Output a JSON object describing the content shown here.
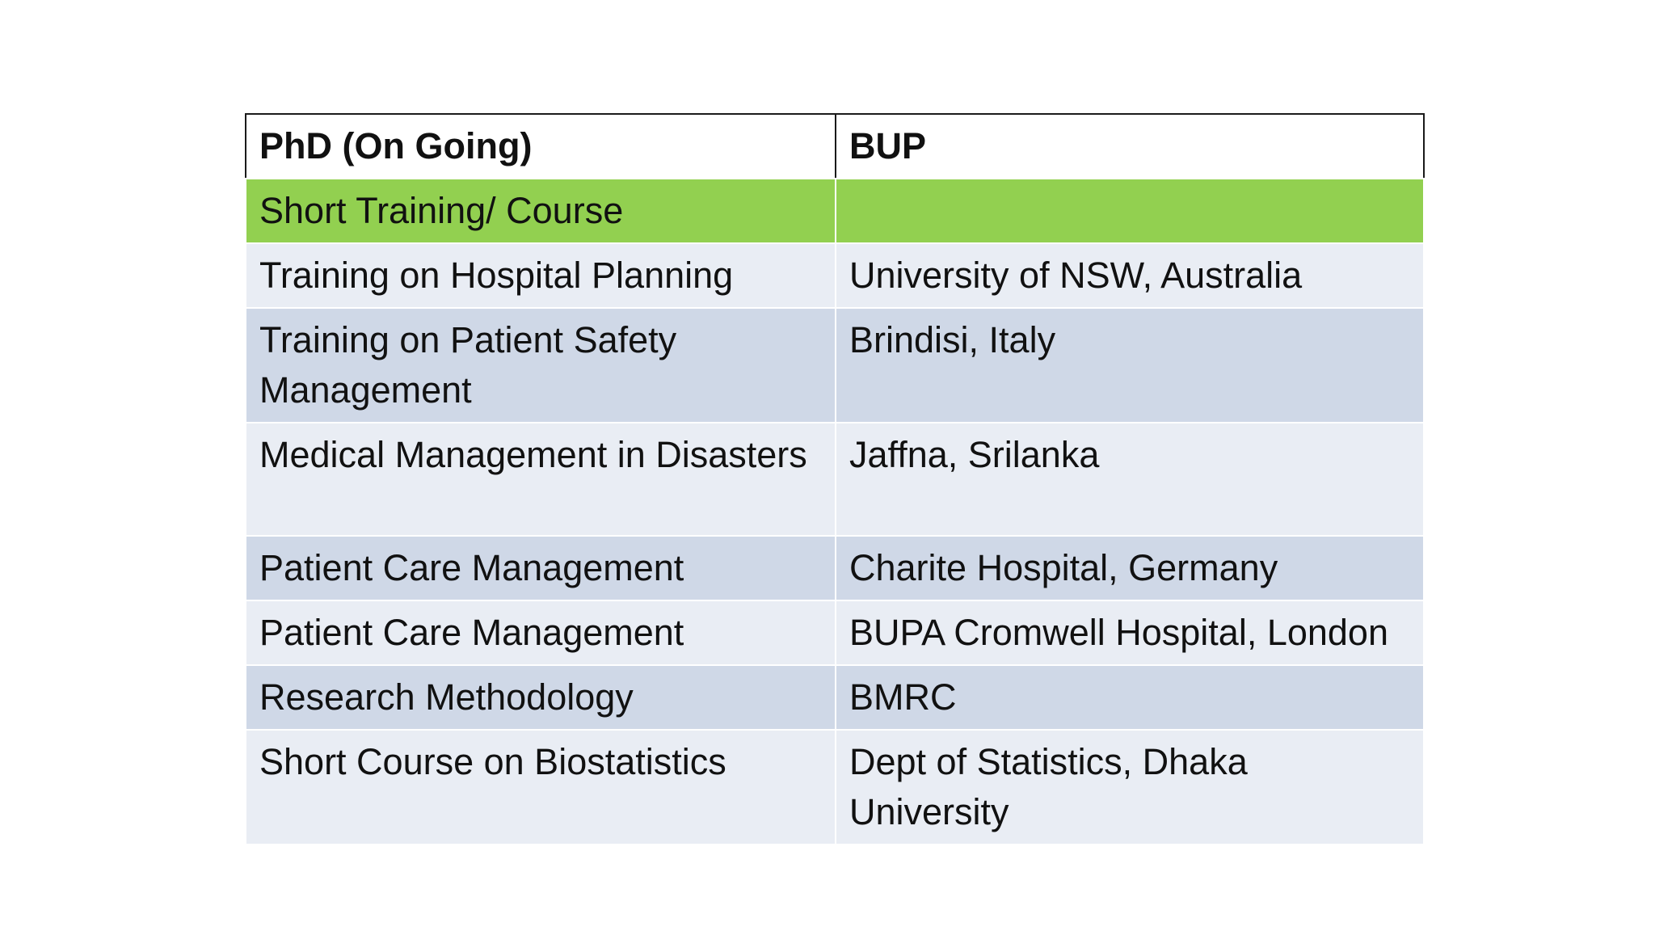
{
  "table": {
    "header": {
      "left": "PhD (On Going)",
      "right": "BUP"
    },
    "section": {
      "left": "Short Training/ Course",
      "right": ""
    },
    "rows": [
      {
        "course": "Training on Hospital Planning",
        "place": "University of NSW, Australia"
      },
      {
        "course": "Training on Patient Safety Management",
        "place": "Brindisi, Italy"
      },
      {
        "course": "Medical Management in Disasters",
        "place": "Jaffna, Srilanka"
      },
      {
        "course": "Patient Care Management",
        "place": "Charite Hospital, Germany"
      },
      {
        "course": "Patient Care Management",
        "place": "BUPA Cromwell Hospital, London"
      },
      {
        "course": "Research Methodology",
        "place": "BMRC"
      },
      {
        "course": "Short Course on Biostatistics",
        "place": "Dept of Statistics, Dhaka University"
      }
    ]
  },
  "colors": {
    "section_fill": "#92d050",
    "row_light": "#e9edf4",
    "row_dark": "#cfd8e7",
    "border": "#1a1a1a"
  }
}
